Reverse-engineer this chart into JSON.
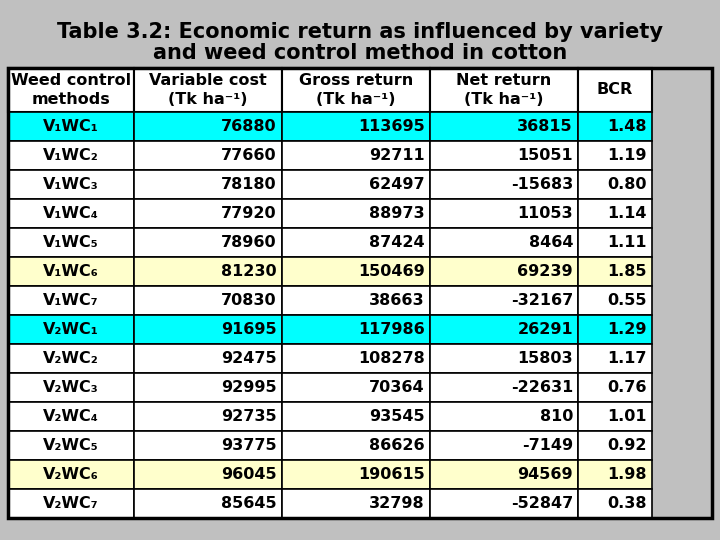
{
  "title_line1": "Table 3.2: Economic return as influenced by variety",
  "title_line2": "and weed control method in cotton",
  "headers": [
    "Weed control\nmethods",
    "Variable cost\n(Tk ha⁻¹)",
    "Gross return\n(Tk ha⁻¹)",
    "Net return\n(Tk ha⁻¹)",
    "BCR"
  ],
  "rows": [
    {
      "label": "V₁WC₁",
      "var_cost": "76880",
      "gross": "113695",
      "net": "36815",
      "bcr": "1.48",
      "bg": "#00FFFF"
    },
    {
      "label": "V₁WC₂",
      "var_cost": "77660",
      "gross": "92711",
      "net": "15051",
      "bcr": "1.19",
      "bg": "white"
    },
    {
      "label": "V₁WC₃",
      "var_cost": "78180",
      "gross": "62497",
      "net": "-15683",
      "bcr": "0.80",
      "bg": "white"
    },
    {
      "label": "V₁WC₄",
      "var_cost": "77920",
      "gross": "88973",
      "net": "11053",
      "bcr": "1.14",
      "bg": "white"
    },
    {
      "label": "V₁WC₅",
      "var_cost": "78960",
      "gross": "87424",
      "net": "8464",
      "bcr": "1.11",
      "bg": "white"
    },
    {
      "label": "V₁WC₆",
      "var_cost": "81230",
      "gross": "150469",
      "net": "69239",
      "bcr": "1.85",
      "bg": "#FFFFCC"
    },
    {
      "label": "V₁WC₇",
      "var_cost": "70830",
      "gross": "38663",
      "net": "-32167",
      "bcr": "0.55",
      "bg": "white"
    },
    {
      "label": "V₂WC₁",
      "var_cost": "91695",
      "gross": "117986",
      "net": "26291",
      "bcr": "1.29",
      "bg": "#00FFFF"
    },
    {
      "label": "V₂WC₂",
      "var_cost": "92475",
      "gross": "108278",
      "net": "15803",
      "bcr": "1.17",
      "bg": "white"
    },
    {
      "label": "V₂WC₃",
      "var_cost": "92995",
      "gross": "70364",
      "net": "-22631",
      "bcr": "0.76",
      "bg": "white"
    },
    {
      "label": "V₂WC₄",
      "var_cost": "92735",
      "gross": "93545",
      "net": "810",
      "bcr": "1.01",
      "bg": "white"
    },
    {
      "label": "V₂WC₅",
      "var_cost": "93775",
      "gross": "86626",
      "net": "-7149",
      "bcr": "0.92",
      "bg": "white"
    },
    {
      "label": "V₂WC₆",
      "var_cost": "96045",
      "gross": "190615",
      "net": "94569",
      "bcr": "1.98",
      "bg": "#FFFFCC"
    },
    {
      "label": "V₂WC₇",
      "var_cost": "85645",
      "gross": "32798",
      "net": "-52847",
      "bcr": "0.38",
      "bg": "white"
    }
  ],
  "border_color": "black",
  "text_color": "black",
  "title_fontsize": 15,
  "cell_fontsize": 11.5,
  "header_fontsize": 11.5,
  "bg_color": "#C0C0C0"
}
